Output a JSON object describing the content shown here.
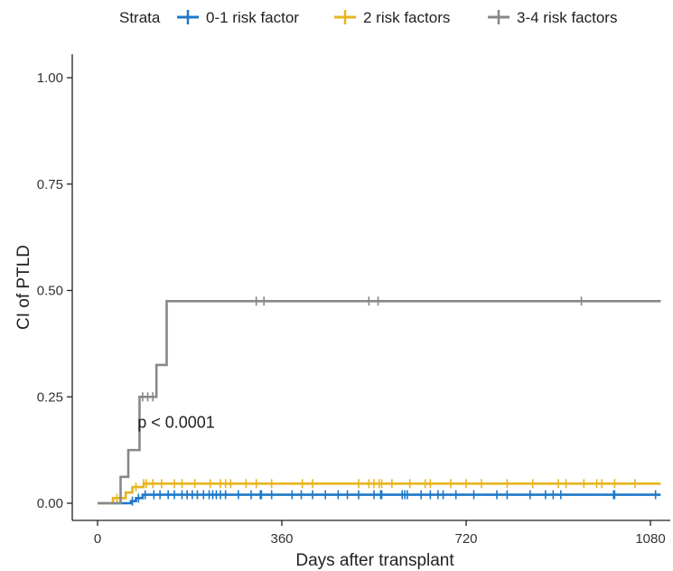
{
  "chart_data": {
    "type": "line",
    "title": "",
    "xlabel": "Days after transplant",
    "ylabel": "CI of PTLD",
    "xlim": [
      0,
      1100
    ],
    "ylim": [
      0,
      1.05
    ],
    "x_ticks": [
      0,
      360,
      720,
      1080
    ],
    "x_tick_labels": [
      "0",
      "360",
      "720",
      "1080"
    ],
    "y_ticks": [
      0,
      0.25,
      0.5,
      0.75,
      1
    ],
    "y_tick_labels": [
      "0.00",
      "0.25",
      "0.50",
      "0.75",
      "1.00"
    ],
    "grid": false,
    "legend": {
      "placement": "top",
      "title": "Strata",
      "entries": [
        "0-1 risk factor",
        "2 risk factors",
        "3-4 risk factors"
      ]
    },
    "annotation": {
      "text": "p < 0.0001",
      "x": 78,
      "y": 0.19
    },
    "series": [
      {
        "name": "0-1 risk factor",
        "color": "#1f78c8",
        "steps": [
          [
            0,
            0
          ],
          [
            65,
            0.005
          ],
          [
            75,
            0.012
          ],
          [
            88,
            0.02
          ],
          [
            1100,
            0.02
          ]
        ],
        "censor": [
          68,
          80,
          93,
          110,
          122,
          138,
          150,
          165,
          175,
          185,
          195,
          207,
          218,
          225,
          232,
          240,
          250,
          275,
          300,
          318,
          320,
          340,
          380,
          398,
          420,
          445,
          470,
          488,
          510,
          540,
          553,
          555,
          595,
          600,
          605,
          632,
          650,
          665,
          675,
          700,
          735,
          780,
          800,
          845,
          875,
          890,
          905,
          1008,
          1010,
          1090
        ]
      },
      {
        "name": "2 risk factors",
        "color": "#e8b51e",
        "steps": [
          [
            0,
            0
          ],
          [
            30,
            0.012
          ],
          [
            55,
            0.025
          ],
          [
            68,
            0.038
          ],
          [
            90,
            0.046
          ],
          [
            1100,
            0.046
          ]
        ],
        "censor": [
          38,
          75,
          90,
          95,
          108,
          125,
          150,
          165,
          190,
          220,
          240,
          250,
          260,
          290,
          310,
          340,
          400,
          420,
          510,
          530,
          540,
          550,
          555,
          575,
          610,
          640,
          650,
          690,
          720,
          750,
          800,
          850,
          900,
          915,
          950,
          975,
          985,
          1010,
          1050
        ]
      },
      {
        "name": "3-4 risk factors",
        "color": "#888888",
        "steps": [
          [
            0,
            0
          ],
          [
            45,
            0.062
          ],
          [
            60,
            0.125
          ],
          [
            82,
            0.25
          ],
          [
            115,
            0.325
          ],
          [
            135,
            0.475
          ],
          [
            1100,
            0.475
          ]
        ],
        "censor": [
          88,
          98,
          108,
          310,
          325,
          530,
          548,
          945
        ]
      }
    ]
  }
}
